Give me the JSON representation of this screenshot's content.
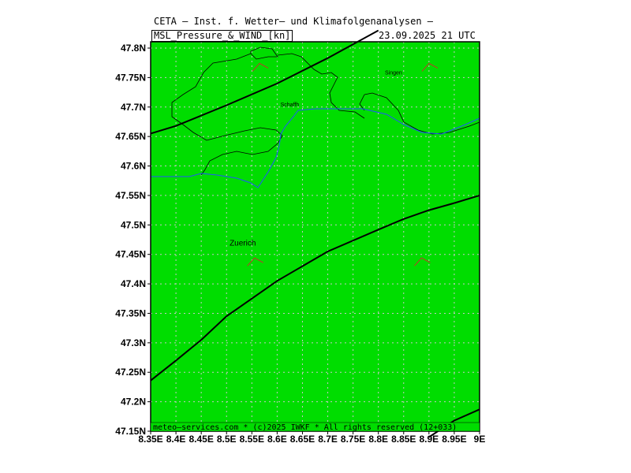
{
  "header": {
    "title": "CETA — Inst. f. Wetter— und Klimafolgenanalysen —",
    "product": "MSL_Pressure_&_WIND_[kn]",
    "valid_time": "23.09.2025 21 UTC"
  },
  "footer": {
    "credit": "meteo—services.com * (c)2025 IWKF * All rights reserved (12+033)"
  },
  "colors": {
    "land_fill": "#00dd00",
    "grid": "#c8c8c8",
    "isobar": "#000000",
    "river": "#2255ff",
    "wind_barb": "#c0392b"
  },
  "places": [
    {
      "name": "Singen",
      "lon": 8.83,
      "lat": 47.755
    },
    {
      "name": "Schaffh",
      "lon": 8.625,
      "lat": 47.701
    },
    {
      "name": "Zuerich",
      "lon": 8.532,
      "lat": 47.465
    }
  ],
  "wind_barbs": [
    {
      "lon": 8.57,
      "lat": 47.77,
      "symbol": "wind-barb"
    },
    {
      "lon": 8.905,
      "lat": 47.77,
      "symbol": "wind-barb"
    },
    {
      "lon": 8.56,
      "lat": 47.44,
      "symbol": "wind-barb"
    },
    {
      "lon": 8.89,
      "lat": 47.44,
      "symbol": "wind-barb"
    }
  ],
  "chart_data": {
    "type": "map",
    "title": "MSL_Pressure_&_WIND_[kn]",
    "xlim": [
      8.35,
      9.0
    ],
    "ylim": [
      47.15,
      47.81
    ],
    "x_ticks": [
      "8.35E",
      "8.4E",
      "8.45E",
      "8.5E",
      "8.55E",
      "8.6E",
      "8.65E",
      "8.7E",
      "8.75E",
      "8.8E",
      "8.85E",
      "8.9E",
      "8.95E",
      "9E"
    ],
    "y_ticks": [
      "47.8N",
      "47.75N",
      "47.7N",
      "47.65N",
      "47.6N",
      "47.55N",
      "47.5N",
      "47.45N",
      "47.4N",
      "47.35N",
      "47.3N",
      "47.25N",
      "47.2N",
      "47.15N"
    ],
    "grid": true,
    "isobars": [
      {
        "points": [
          [
            8.35,
            47.655
          ],
          [
            8.4,
            47.668
          ],
          [
            8.5,
            47.703
          ],
          [
            8.6,
            47.74
          ],
          [
            8.7,
            47.783
          ],
          [
            8.8,
            47.83
          ]
        ]
      },
      {
        "points": [
          [
            8.35,
            47.236
          ],
          [
            8.4,
            47.27
          ],
          [
            8.45,
            47.305
          ],
          [
            8.5,
            47.345
          ],
          [
            8.6,
            47.405
          ],
          [
            8.7,
            47.455
          ],
          [
            8.8,
            47.492
          ],
          [
            8.85,
            47.51
          ],
          [
            8.9,
            47.525
          ],
          [
            8.95,
            47.537
          ],
          [
            9.0,
            47.55
          ]
        ]
      },
      {
        "points": [
          [
            8.9,
            47.14
          ],
          [
            8.95,
            47.168
          ],
          [
            9.0,
            47.187
          ]
        ]
      }
    ]
  }
}
